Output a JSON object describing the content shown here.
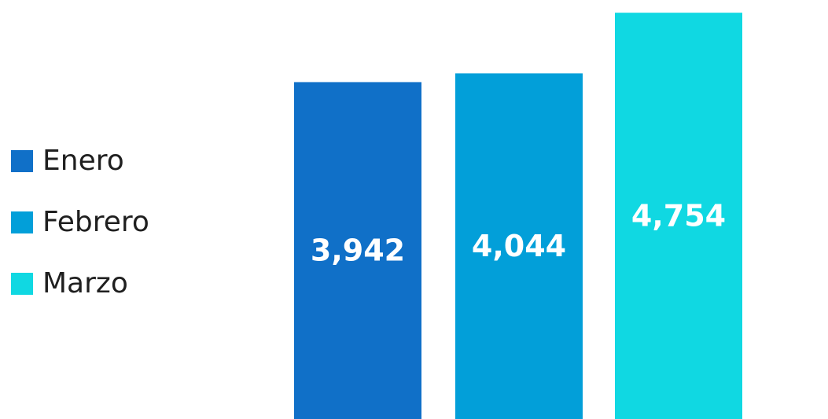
{
  "chart_data": {
    "type": "bar",
    "categories": [
      "Enero",
      "Febrero",
      "Marzo"
    ],
    "values": [
      3942,
      4044,
      4754
    ],
    "value_labels": [
      "3,942",
      "4,044",
      "4,754"
    ],
    "colors": [
      "#1070c8",
      "#029fd9",
      "#10d8e2"
    ],
    "title": "",
    "xlabel": "",
    "ylabel": "",
    "ylim": [
      0,
      4820
    ],
    "grid": false,
    "legend_position": "left"
  }
}
